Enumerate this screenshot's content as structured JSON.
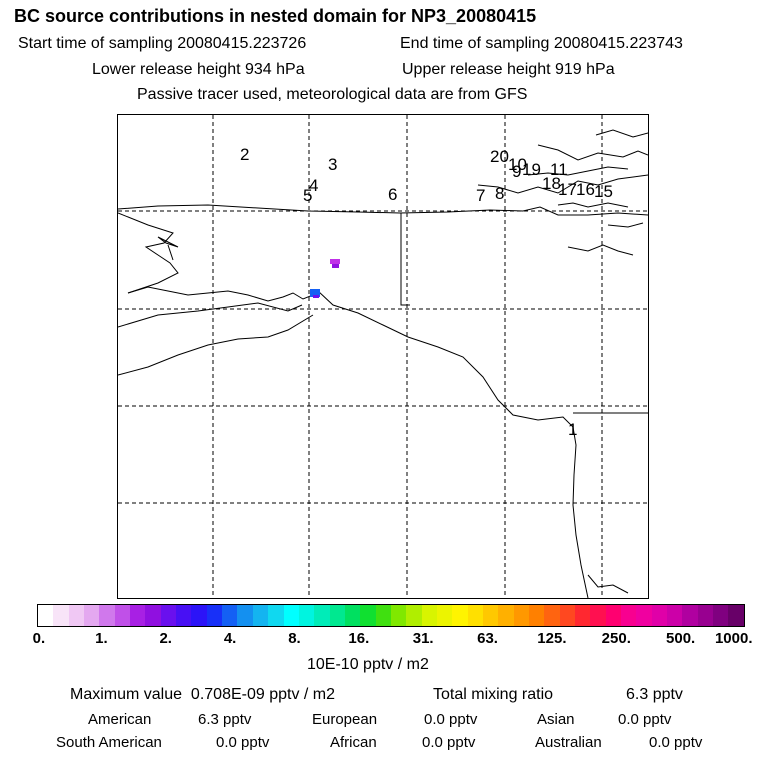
{
  "title": "BC  source contributions in nested domain for NP3_20080415",
  "sampling": {
    "start_label": "Start time of sampling",
    "start_value": "20080415.223726",
    "end_label": "End time of sampling",
    "end_value": "20080415.223743"
  },
  "release": {
    "lower_label": "Lower release height",
    "lower_value": "934 hPa",
    "upper_label": "Upper release height",
    "upper_value": "919 hPa"
  },
  "note": "Passive tracer used, meteorological data are from GFS",
  "map": {
    "region": "Alaska / North America west coast",
    "trajectory_labels": [
      {
        "text": "2"
      },
      {
        "text": "3"
      },
      {
        "text": "4"
      },
      {
        "text": "5"
      },
      {
        "text": "6"
      },
      {
        "text": "7"
      },
      {
        "text": "8"
      },
      {
        "text": "9"
      },
      {
        "text": "19"
      },
      {
        "text": "20"
      },
      {
        "text": "10"
      },
      {
        "text": "11"
      },
      {
        "text": "18"
      },
      {
        "text": "17"
      },
      {
        "text": "16"
      },
      {
        "text": "15"
      },
      {
        "text": "1"
      }
    ]
  },
  "colorbar": {
    "ticks": [
      "0.",
      "1.",
      "2.",
      "4.",
      "8.",
      "16.",
      "31.",
      "63.",
      "125.",
      "250.",
      "500.",
      "1000."
    ],
    "colors": [
      "#ffffff",
      "#f8e4f8",
      "#f0c8f4",
      "#e4a8f0",
      "#d078ec",
      "#c050e8",
      "#a820e4",
      "#9010e0",
      "#6a10ee",
      "#4810f4",
      "#2c14f8",
      "#1830f8",
      "#1460f4",
      "#1490f0",
      "#14b4f0",
      "#10d8f0",
      "#00ffff",
      "#00f4e0",
      "#00ecb8",
      "#00e890",
      "#00e060",
      "#10e030",
      "#40e010",
      "#80e800",
      "#b0ee00",
      "#d8f400",
      "#ecf400",
      "#fff400",
      "#ffe000",
      "#ffc800",
      "#ffb000",
      "#ff9800",
      "#ff8000",
      "#ff6410",
      "#ff4820",
      "#ff2830",
      "#ff1050",
      "#ff0070",
      "#f80090",
      "#f000a0",
      "#e000a8",
      "#cc00a8",
      "#b000a0",
      "#980090",
      "#800080",
      "#680068"
    ],
    "unit": "10E-10 pptv / m2"
  },
  "summary": {
    "max_label": "Maximum value",
    "max_value": "0.708E-09 pptv / m2",
    "total_label": "Total mixing ratio",
    "total_value": "6.3 pptv",
    "regions": [
      {
        "name": "American",
        "value": "6.3 pptv"
      },
      {
        "name": "European",
        "value": "0.0 pptv"
      },
      {
        "name": "Asian",
        "value": "0.0 pptv"
      },
      {
        "name": "South American",
        "value": "0.0 pptv"
      },
      {
        "name": "African",
        "value": "0.0 pptv"
      },
      {
        "name": "Australian",
        "value": "0.0 pptv"
      }
    ]
  }
}
